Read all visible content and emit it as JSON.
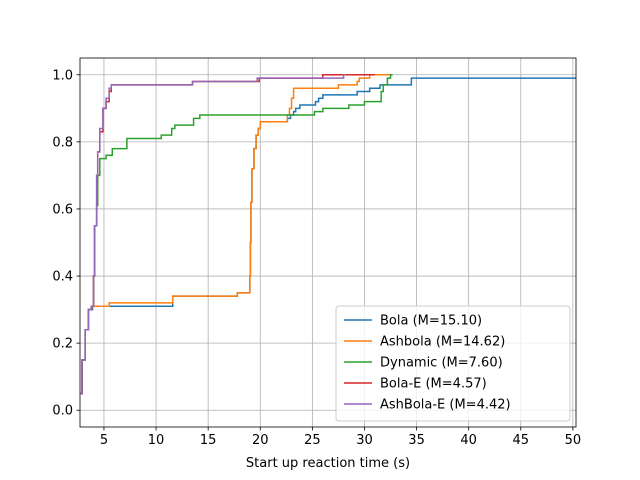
{
  "chart_data": {
    "type": "line",
    "title": "",
    "xlabel": "Start up reaction time (s)",
    "ylabel": "",
    "xlim": [
      2.7,
      50.3
    ],
    "ylim": [
      -0.05,
      1.05
    ],
    "xticks": [
      5,
      10,
      15,
      20,
      25,
      30,
      35,
      40,
      45,
      50
    ],
    "xtick_labels": [
      "5",
      "10",
      "15",
      "20",
      "25",
      "30",
      "35",
      "40",
      "45",
      "50"
    ],
    "yticks": [
      0.0,
      0.2,
      0.4,
      0.6,
      0.8,
      1.0
    ],
    "ytick_labels": [
      "0.0",
      "0.2",
      "0.4",
      "0.6",
      "0.8",
      "1.0"
    ],
    "grid": true,
    "legend_position": "lower-right",
    "step": "post",
    "series": [
      {
        "name": "Bola (M=15.10)",
        "color": "#1f77b4",
        "points": [
          [
            2.75,
            0.05
          ],
          [
            2.9,
            0.15
          ],
          [
            3.2,
            0.24
          ],
          [
            3.5,
            0.3
          ],
          [
            3.9,
            0.31
          ],
          [
            4.2,
            0.31
          ],
          [
            11.6,
            0.31
          ],
          [
            11.6,
            0.34
          ],
          [
            17.8,
            0.34
          ],
          [
            17.8,
            0.35
          ],
          [
            18.9,
            0.35
          ],
          [
            19.0,
            0.4
          ],
          [
            19.05,
            0.5
          ],
          [
            19.1,
            0.62
          ],
          [
            19.2,
            0.72
          ],
          [
            19.4,
            0.78
          ],
          [
            19.6,
            0.82
          ],
          [
            19.8,
            0.84
          ],
          [
            20.0,
            0.86
          ],
          [
            22.6,
            0.86
          ],
          [
            22.6,
            0.87
          ],
          [
            22.9,
            0.88
          ],
          [
            23.2,
            0.89
          ],
          [
            23.4,
            0.9
          ],
          [
            23.8,
            0.91
          ],
          [
            25.0,
            0.91
          ],
          [
            25.3,
            0.92
          ],
          [
            25.6,
            0.93
          ],
          [
            26.0,
            0.94
          ],
          [
            29.0,
            0.94
          ],
          [
            29.3,
            0.95
          ],
          [
            30.5,
            0.96
          ],
          [
            31.5,
            0.97
          ],
          [
            34.3,
            0.97
          ],
          [
            34.5,
            0.98
          ],
          [
            34.5,
            0.99
          ],
          [
            50.3,
            0.99
          ]
        ]
      },
      {
        "name": "Ashbola (M=14.62)",
        "color": "#ff7f0e",
        "points": [
          [
            2.75,
            0.05
          ],
          [
            2.9,
            0.15
          ],
          [
            3.2,
            0.24
          ],
          [
            3.5,
            0.3
          ],
          [
            3.8,
            0.31
          ],
          [
            5.5,
            0.31
          ],
          [
            5.5,
            0.32
          ],
          [
            11.6,
            0.32
          ],
          [
            11.6,
            0.34
          ],
          [
            17.8,
            0.34
          ],
          [
            17.8,
            0.35
          ],
          [
            18.9,
            0.35
          ],
          [
            19.0,
            0.4
          ],
          [
            19.05,
            0.5
          ],
          [
            19.1,
            0.62
          ],
          [
            19.2,
            0.72
          ],
          [
            19.4,
            0.78
          ],
          [
            19.6,
            0.82
          ],
          [
            19.8,
            0.84
          ],
          [
            20.0,
            0.86
          ],
          [
            22.4,
            0.86
          ],
          [
            22.6,
            0.88
          ],
          [
            22.8,
            0.9
          ],
          [
            23.0,
            0.93
          ],
          [
            23.2,
            0.96
          ],
          [
            27.0,
            0.96
          ],
          [
            27.5,
            0.97
          ],
          [
            29.0,
            0.97
          ],
          [
            29.3,
            0.98
          ],
          [
            29.5,
            0.99
          ],
          [
            30.5,
            1.0
          ],
          [
            32.6,
            1.0
          ]
        ]
      },
      {
        "name": "Dynamic (M=7.60)",
        "color": "#2ca02c",
        "points": [
          [
            2.75,
            0.05
          ],
          [
            2.9,
            0.15
          ],
          [
            3.2,
            0.24
          ],
          [
            3.5,
            0.3
          ],
          [
            3.8,
            0.31
          ],
          [
            4.0,
            0.4
          ],
          [
            4.1,
            0.55
          ],
          [
            4.3,
            0.61
          ],
          [
            4.4,
            0.7
          ],
          [
            4.6,
            0.75
          ],
          [
            5.2,
            0.76
          ],
          [
            5.8,
            0.78
          ],
          [
            7.2,
            0.78
          ],
          [
            7.2,
            0.81
          ],
          [
            10.0,
            0.81
          ],
          [
            10.5,
            0.82
          ],
          [
            11.5,
            0.84
          ],
          [
            11.8,
            0.85
          ],
          [
            13.4,
            0.85
          ],
          [
            13.6,
            0.87
          ],
          [
            14.2,
            0.88
          ],
          [
            24.8,
            0.88
          ],
          [
            25.2,
            0.89
          ],
          [
            26.0,
            0.9
          ],
          [
            28.0,
            0.9
          ],
          [
            28.5,
            0.91
          ],
          [
            30.0,
            0.91
          ],
          [
            30.0,
            0.92
          ],
          [
            31.6,
            0.92
          ],
          [
            31.6,
            0.95
          ],
          [
            31.8,
            0.97
          ],
          [
            32.2,
            0.99
          ],
          [
            32.5,
            1.0
          ],
          [
            32.7,
            1.0
          ]
        ]
      },
      {
        "name": "Bola-E (M=4.57)",
        "color": "#d62728",
        "points": [
          [
            2.75,
            0.05
          ],
          [
            2.9,
            0.15
          ],
          [
            3.2,
            0.24
          ],
          [
            3.5,
            0.3
          ],
          [
            3.8,
            0.31
          ],
          [
            4.0,
            0.4
          ],
          [
            4.1,
            0.55
          ],
          [
            4.3,
            0.7
          ],
          [
            4.4,
            0.77
          ],
          [
            4.6,
            0.83
          ],
          [
            4.9,
            0.9
          ],
          [
            5.2,
            0.92
          ],
          [
            5.5,
            0.95
          ],
          [
            5.7,
            0.97
          ],
          [
            13.5,
            0.97
          ],
          [
            13.5,
            0.98
          ],
          [
            19.9,
            0.98
          ],
          [
            19.9,
            0.99
          ],
          [
            26.0,
            0.99
          ],
          [
            26.0,
            1.0
          ],
          [
            31.0,
            1.0
          ]
        ]
      },
      {
        "name": "AshBola-E (M=4.42)",
        "color": "#9467bd",
        "points": [
          [
            2.75,
            0.05
          ],
          [
            2.9,
            0.15
          ],
          [
            3.2,
            0.24
          ],
          [
            3.5,
            0.3
          ],
          [
            3.8,
            0.31
          ],
          [
            4.0,
            0.4
          ],
          [
            4.1,
            0.55
          ],
          [
            4.3,
            0.7
          ],
          [
            4.4,
            0.77
          ],
          [
            4.6,
            0.84
          ],
          [
            4.9,
            0.9
          ],
          [
            5.2,
            0.93
          ],
          [
            5.5,
            0.96
          ],
          [
            5.7,
            0.97
          ],
          [
            13.5,
            0.97
          ],
          [
            13.5,
            0.98
          ],
          [
            19.7,
            0.98
          ],
          [
            19.7,
            0.99
          ],
          [
            28.0,
            0.99
          ],
          [
            28.0,
            1.0
          ],
          [
            28.2,
            1.0
          ]
        ]
      }
    ]
  }
}
